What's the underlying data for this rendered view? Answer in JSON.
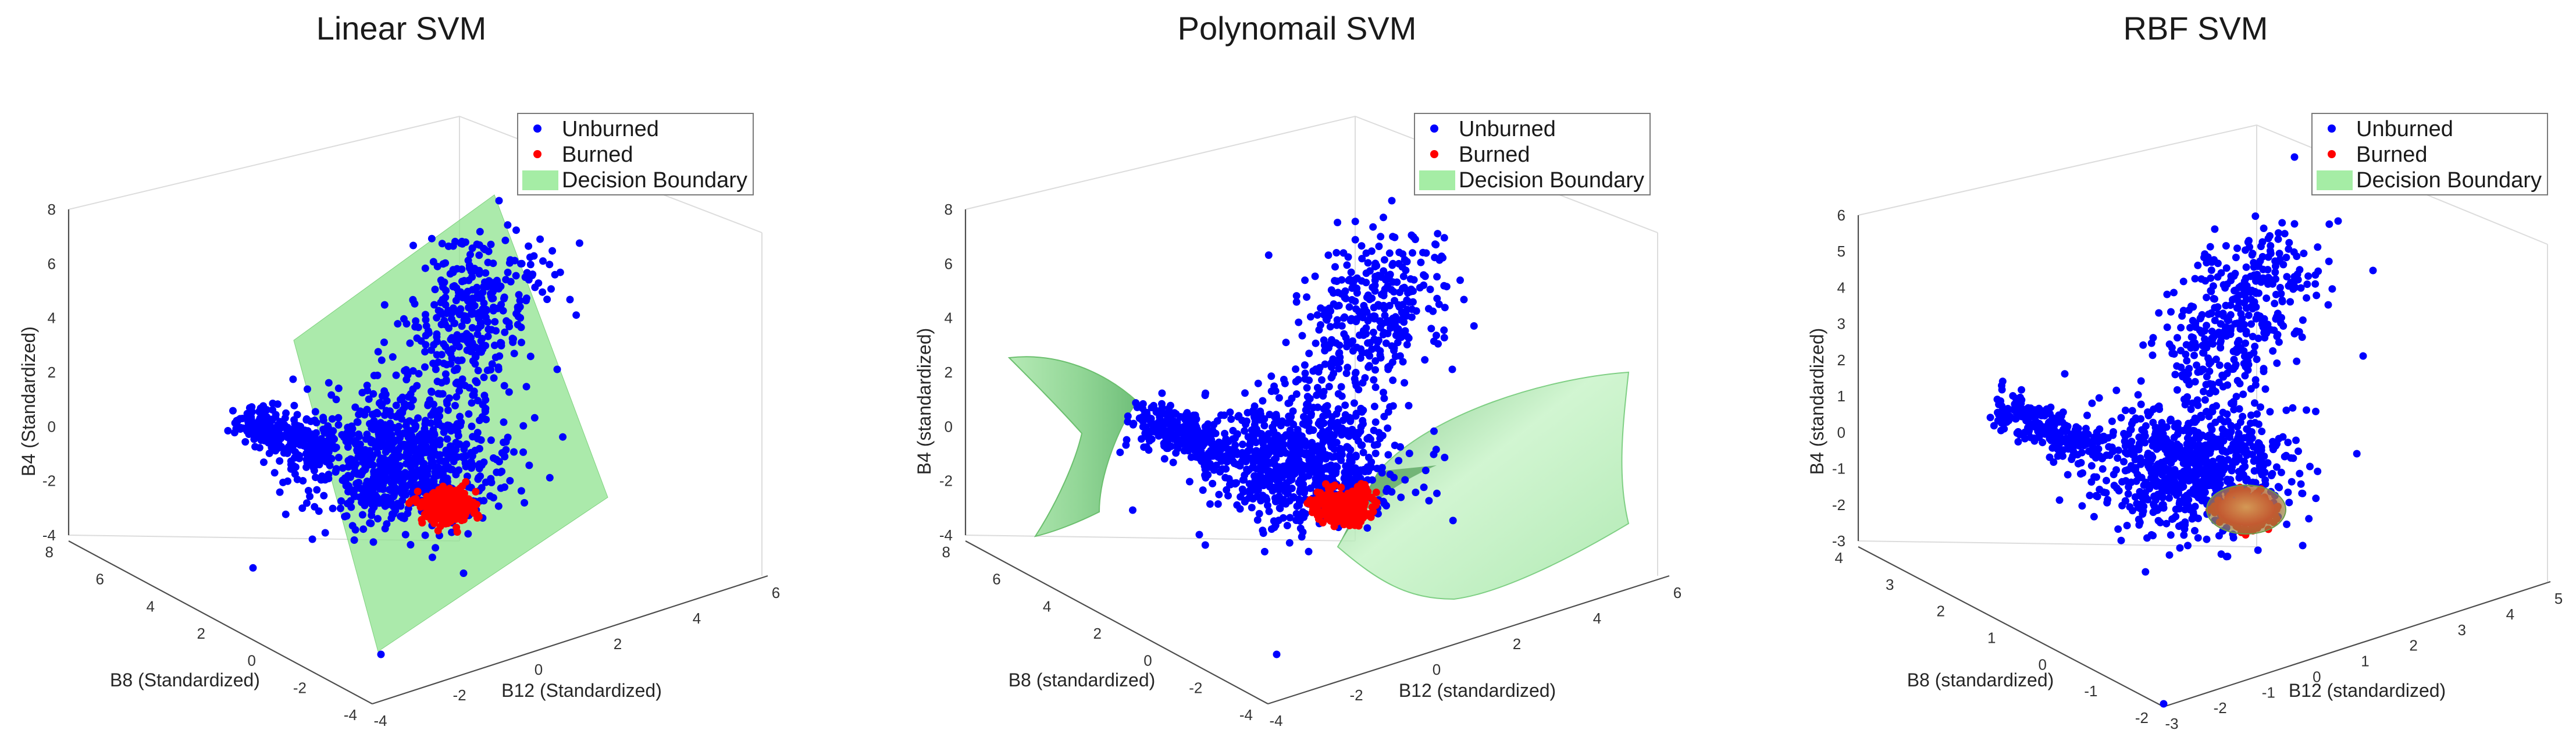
{
  "chart_data": [
    {
      "type": "scatter",
      "subtype": "3d-scatter-with-decision-surface",
      "title": "Linear SVM",
      "xlabel": "B8 (Standardized)",
      "ylabel": "B12 (Standardized)",
      "zlabel": "B4 (Standardized)",
      "xlim": [
        -4,
        8
      ],
      "ylim": [
        -4,
        6
      ],
      "zlim": [
        -4,
        8
      ],
      "xticks": [
        "8",
        "6",
        "4",
        "2",
        "0",
        "-2",
        "-4"
      ],
      "yticks": [
        "-4",
        "-2",
        "0",
        "2",
        "4",
        "6"
      ],
      "zticks": [
        "-4",
        "-2",
        "0",
        "2",
        "4",
        "6",
        "8"
      ],
      "surface": "linear",
      "grid": true,
      "legend_position": "top-right",
      "legend": [
        "Unburned",
        "Burned",
        "Decision Boundary"
      ],
      "series": [
        {
          "name": "Unburned",
          "color": "#0000ff",
          "seed": 11,
          "count": 1400
        },
        {
          "name": "Burned",
          "color": "#ff0000",
          "seed": 21,
          "count": 420
        },
        {
          "name": "Decision Boundary",
          "color": "#8fe38f"
        }
      ]
    },
    {
      "type": "scatter",
      "subtype": "3d-scatter-with-decision-surface",
      "title": "Polynomail SVM",
      "xlabel": "B8 (standardized)",
      "ylabel": "B12 (standardized)",
      "zlabel": "B4 (standardized)",
      "xlim": [
        -4,
        8
      ],
      "ylim": [
        -4,
        6
      ],
      "zlim": [
        -4,
        8
      ],
      "xticks": [
        "8",
        "6",
        "4",
        "2",
        "0",
        "-2",
        "-4"
      ],
      "yticks": [
        "-4",
        "-2",
        "0",
        "2",
        "4",
        "6"
      ],
      "zticks": [
        "-4",
        "-2",
        "0",
        "2",
        "4",
        "6",
        "8"
      ],
      "surface": "polynomial",
      "grid": true,
      "legend_position": "top-right",
      "legend": [
        "Unburned",
        "Burned",
        "Decision Boundary"
      ],
      "series": [
        {
          "name": "Unburned",
          "color": "#0000ff",
          "seed": 12,
          "count": 1400
        },
        {
          "name": "Burned",
          "color": "#ff0000",
          "seed": 22,
          "count": 420
        },
        {
          "name": "Decision Boundary",
          "color": "#8fe38f"
        }
      ]
    },
    {
      "type": "scatter",
      "subtype": "3d-scatter-with-decision-surface",
      "title": "RBF SVM",
      "xlabel": "B8 (standardized)",
      "ylabel": "B12 (standardized)",
      "zlabel": "B4 (standardized)",
      "xlim": [
        -2,
        4
      ],
      "ylim": [
        -3,
        5
      ],
      "zlim": [
        -3,
        6
      ],
      "xticks": [
        "4",
        "3",
        "2",
        "1",
        "0",
        "-1",
        "-2"
      ],
      "yticks": [
        "-3",
        "-2",
        "-1",
        "0",
        "1",
        "2",
        "3",
        "4",
        "5"
      ],
      "zticks": [
        "-3",
        "-2",
        "-1",
        "0",
        "1",
        "2",
        "3",
        "4",
        "5",
        "6"
      ],
      "surface": "rbf",
      "grid": true,
      "legend_position": "top-right",
      "legend": [
        "Unburned",
        "Burned",
        "Decision Boundary"
      ],
      "series": [
        {
          "name": "Unburned",
          "color": "#0000ff",
          "seed": 13,
          "count": 1400
        },
        {
          "name": "Burned",
          "color": "#ff0000",
          "seed": 23,
          "count": 420
        },
        {
          "name": "Decision Boundary",
          "color": "#8fe38f"
        }
      ]
    }
  ]
}
